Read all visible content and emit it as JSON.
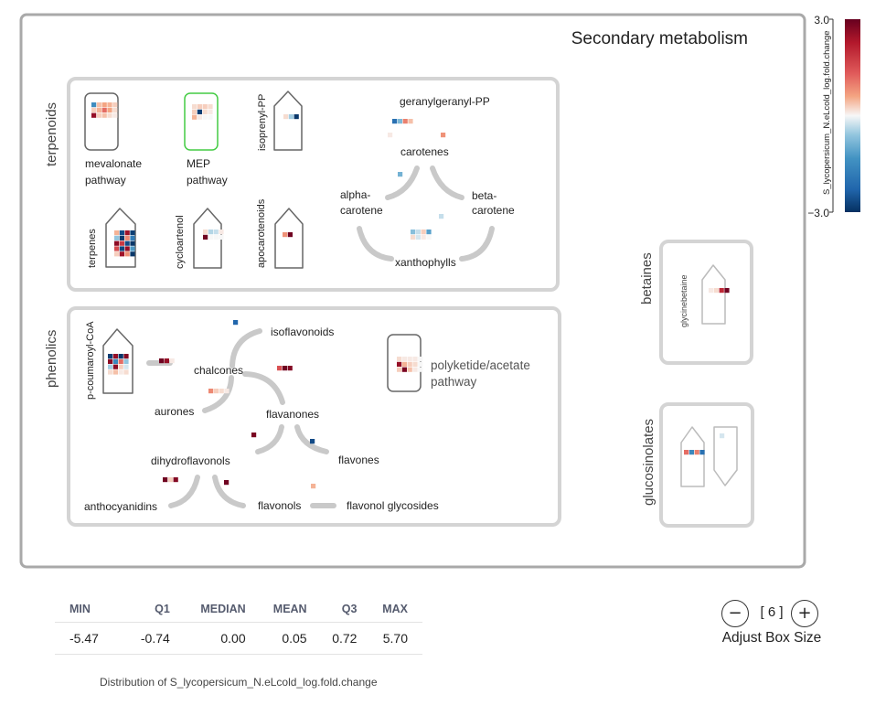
{
  "title": "Secondary metabolism",
  "groups": {
    "terpenoids": "terpenoids",
    "phenolics": "phenolics",
    "betaines": "betaines",
    "glucosinolates": "glucosinolates"
  },
  "labels": {
    "mevalonate_1": "mevalonate",
    "mevalonate_2": "pathway",
    "mep_1": "MEP",
    "mep_2": "pathway",
    "isoprenyl": "isoprenyl-PP",
    "geranylgeranyl": "geranylgeranyl-PP",
    "carotenes": "carotenes",
    "alpha_1": "alpha-",
    "alpha_2": "carotene",
    "beta_1": "beta-",
    "beta_2": "carotene",
    "xanthophylls": "xanthophylls",
    "terpenes": "terpenes",
    "cycloartenol": "cycloartenol",
    "apocarotenoids": "apocarotenoids",
    "coumaroyl": "p-coumaroyl-CoA",
    "isoflavonoids": "isoflavonoids",
    "chalcones": "chalcones",
    "aurones": "aurones",
    "flavanones": "flavanones",
    "flavones": "flavones",
    "dihydroflavonols": "dihydroflavonols",
    "anthocyanidins": "anthocyanidins",
    "flavonols": "flavonols",
    "flavonol_glycosides": "flavonol glycosides",
    "polyketide_1": "polyketide/acetate",
    "polyketide_2": "pathway",
    "glycinebetaine": "glycinebetaine"
  },
  "colorbar": {
    "title": "S_lycopersicum_N.eLcold_log.fold.change",
    "max_label": "3.0",
    "min_label": "−3.0",
    "min": -3,
    "max": 3,
    "high_color": "#67001f",
    "mid_color": "#f7f7f7",
    "low_color": "#053061"
  },
  "stats": {
    "headers": [
      "MIN",
      "Q1",
      "MEDIAN",
      "MEAN",
      "Q3",
      "MAX"
    ],
    "values": [
      "-5.47",
      "-0.74",
      "0.00",
      "0.05",
      "0.72",
      "5.70"
    ],
    "caption": "Distribution of S_lycopersicum_N.eLcold_log.fold.change"
  },
  "box_control": {
    "value": "[ 6 ]",
    "label": "Adjust Box Size",
    "minus": "−",
    "plus": "+"
  },
  "heatmap_cells": {
    "mevalonate": [
      [
        -1.5,
        0.4,
        0.6,
        0.5,
        0.3
      ],
      [
        0.3,
        0.5,
        1.2,
        0.6,
        0.2
      ],
      [
        2.5,
        0.3,
        0.4,
        0.2,
        0.1
      ]
    ],
    "mep": [
      [
        0.2,
        0.3,
        0.3,
        0.2
      ],
      [
        0.3,
        -2.8,
        0.2,
        0.1
      ],
      [
        0.5,
        0.1,
        0.0,
        0.0
      ]
    ],
    "isoprenyl": [
      [
        0.2,
        -0.5,
        -2.9
      ]
    ],
    "geranylgeranyl": [
      [
        -2.0,
        -0.8,
        1.0,
        0.4
      ]
    ],
    "carotenes_a": [
      [
        0.1
      ]
    ],
    "carotenes_b": [
      [
        0.8
      ]
    ],
    "alpha": [
      [
        -0.9
      ]
    ],
    "beta": [
      [
        -0.3
      ]
    ],
    "xanthophylls": [
      [
        -0.7,
        -0.3,
        0.3,
        -1.2
      ],
      [
        0.2,
        -0.2,
        0.1,
        0.0
      ]
    ],
    "terpenes": [
      [
        0.5,
        -2.6,
        2.4,
        -2.8
      ],
      [
        -0.6,
        -2.9,
        0.9,
        -1.8
      ],
      [
        2.6,
        1.8,
        -2.6,
        -2.9
      ],
      [
        1.6,
        -2.7,
        2.5,
        -1.3
      ],
      [
        0.3,
        2.4,
        0.8,
        -2.9
      ]
    ],
    "cycloartenol": [
      [
        0.2,
        -0.4,
        -0.3,
        0.1
      ],
      [
        2.9,
        0.0,
        0.0,
        0.0
      ]
    ],
    "apocarotenoids": [
      [
        0.8,
        2.9
      ]
    ],
    "coumaroyl": [
      [
        -2.8,
        2.5,
        -2.9,
        2.7
      ],
      [
        2.6,
        -1.6,
        1.2,
        -0.6
      ],
      [
        -0.5,
        2.6,
        0.3,
        -0.2
      ],
      [
        0.2,
        0.4,
        0.1,
        0.2
      ]
    ],
    "isoflavonoids": [
      [
        -2.2
      ]
    ],
    "chalcones_a": [
      [
        2.9,
        2.5,
        0.1
      ]
    ],
    "chalcones_b": [
      [
        1.5,
        2.9,
        2.7
      ]
    ],
    "aurones": [
      [
        0.9,
        0.3,
        0.2,
        0.1
      ]
    ],
    "flavanones": [
      [
        2.8
      ]
    ],
    "flavones": [
      [
        -2.6
      ]
    ],
    "dihydroflavonols": [
      [
        2.9,
        0.3,
        2.7
      ]
    ],
    "anthocyanidins": [
      [
        2.9
      ]
    ],
    "flavonol_glycosides": [
      [
        0.5
      ]
    ],
    "polyketide": [
      [
        0.2,
        0.1,
        0.1,
        0.1,
        0.0
      ],
      [
        2.5,
        0.5,
        0.3,
        0.2,
        0.0
      ],
      [
        0.3,
        2.8,
        0.4,
        0.1,
        0.0
      ]
    ],
    "glycinebetaine": [
      [
        0.1,
        0.2,
        2.0,
        2.9
      ]
    ],
    "glucosinolates_a": [
      [
        1.2,
        -1.6,
        1.0,
        -2.0
      ]
    ],
    "glucosinolates_b": [
      [
        -0.2
      ]
    ]
  }
}
